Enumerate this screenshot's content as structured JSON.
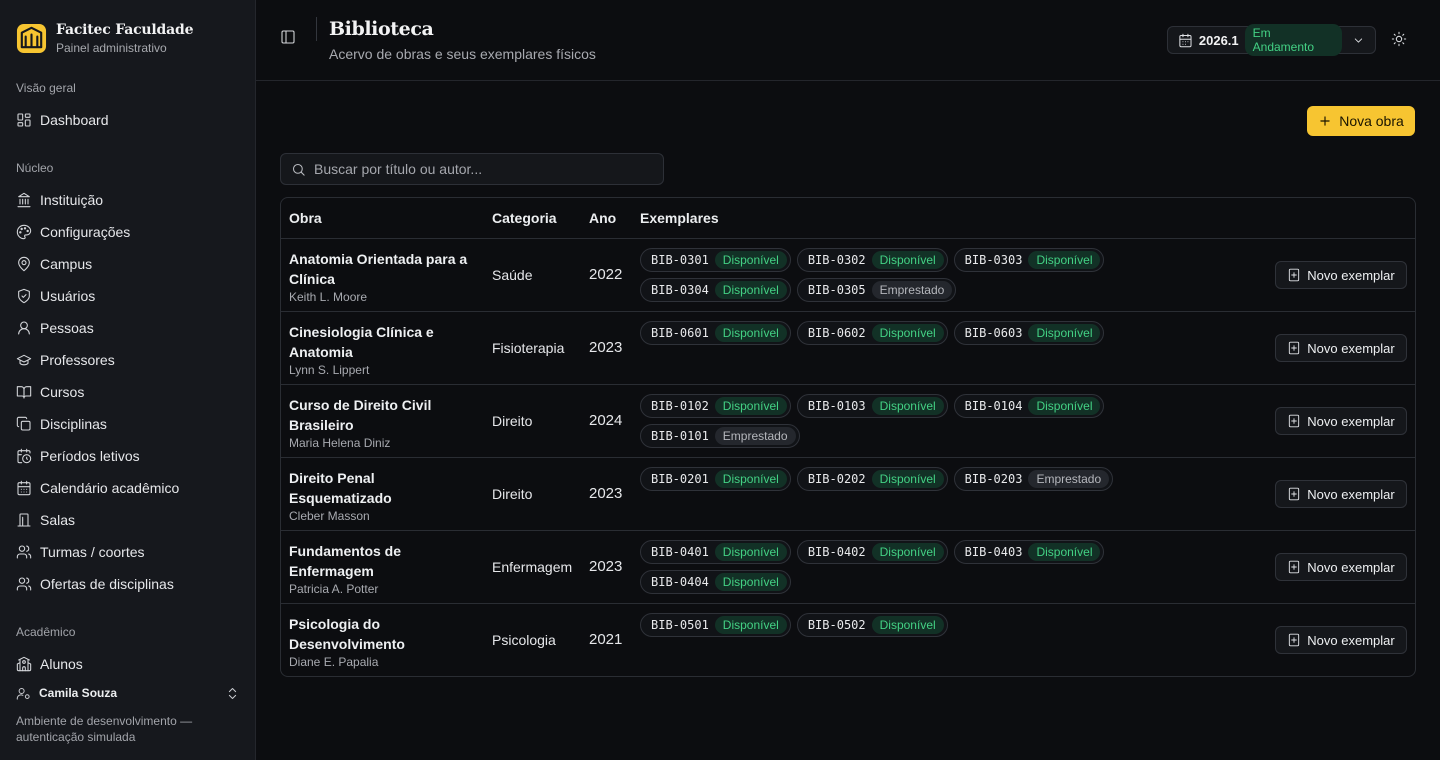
{
  "brand": {
    "name": "Facitec Faculdade",
    "subtitle": "Painel administrativo"
  },
  "sidebar": {
    "groups": [
      {
        "title": "Visão geral",
        "items": [
          {
            "label": "Dashboard",
            "icon": "dashboard-icon"
          }
        ]
      },
      {
        "title": "Núcleo",
        "items": [
          {
            "label": "Instituição",
            "icon": "landmark-icon"
          },
          {
            "label": "Configurações",
            "icon": "palette-icon"
          },
          {
            "label": "Campus",
            "icon": "map-pin-icon"
          },
          {
            "label": "Usuários",
            "icon": "shield-icon"
          },
          {
            "label": "Pessoas",
            "icon": "user-icon"
          },
          {
            "label": "Professores",
            "icon": "graduation-cap-icon"
          },
          {
            "label": "Cursos",
            "icon": "book-open-icon"
          },
          {
            "label": "Disciplinas",
            "icon": "copy-icon"
          },
          {
            "label": "Períodos letivos",
            "icon": "calendar-clock-icon"
          },
          {
            "label": "Calendário acadêmico",
            "icon": "calendar-days-icon"
          },
          {
            "label": "Salas",
            "icon": "door-icon"
          },
          {
            "label": "Turmas / coortes",
            "icon": "users-icon"
          },
          {
            "label": "Ofertas de disciplinas",
            "icon": "users-icon"
          }
        ]
      },
      {
        "title": "Acadêmico",
        "items": [
          {
            "label": "Alunos",
            "icon": "school-icon"
          }
        ]
      }
    ],
    "user": {
      "name": "Camila Souza"
    },
    "env_note": "Ambiente de desenvolvimento — autenticação simulada"
  },
  "header": {
    "title": "Biblioteca",
    "subtitle": "Acervo de obras e seus exemplares físicos",
    "period": {
      "label": "2026.1",
      "status": "Em Andamento"
    }
  },
  "actions": {
    "new_work": "Nova obra"
  },
  "search": {
    "placeholder": "Buscar por título ou autor..."
  },
  "table": {
    "columns": {
      "obra": "Obra",
      "categoria": "Categoria",
      "ano": "Ano",
      "exemplares": "Exemplares"
    },
    "add_copy_label": "Novo exemplar",
    "rows": [
      {
        "title": "Anatomia Orientada para a Clínica",
        "author": "Keith L. Moore",
        "category": "Saúde",
        "year": "2022",
        "copies": [
          {
            "code": "BIB-0301",
            "status": "Disponível"
          },
          {
            "code": "BIB-0302",
            "status": "Disponível"
          },
          {
            "code": "BIB-0303",
            "status": "Disponível"
          },
          {
            "code": "BIB-0304",
            "status": "Disponível"
          },
          {
            "code": "BIB-0305",
            "status": "Emprestado"
          }
        ]
      },
      {
        "title": "Cinesiologia Clínica e Anatomia",
        "author": "Lynn S. Lippert",
        "category": "Fisioterapia",
        "year": "2023",
        "copies": [
          {
            "code": "BIB-0601",
            "status": "Disponível"
          },
          {
            "code": "BIB-0602",
            "status": "Disponível"
          },
          {
            "code": "BIB-0603",
            "status": "Disponível"
          }
        ]
      },
      {
        "title": "Curso de Direito Civil Brasileiro",
        "author": "Maria Helena Diniz",
        "category": "Direito",
        "year": "2024",
        "copies": [
          {
            "code": "BIB-0102",
            "status": "Disponível"
          },
          {
            "code": "BIB-0103",
            "status": "Disponível"
          },
          {
            "code": "BIB-0104",
            "status": "Disponível"
          },
          {
            "code": "BIB-0101",
            "status": "Emprestado"
          }
        ]
      },
      {
        "title": "Direito Penal Esquematizado",
        "author": "Cleber Masson",
        "category": "Direito",
        "year": "2023",
        "copies": [
          {
            "code": "BIB-0201",
            "status": "Disponível"
          },
          {
            "code": "BIB-0202",
            "status": "Disponível"
          },
          {
            "code": "BIB-0203",
            "status": "Emprestado"
          }
        ]
      },
      {
        "title": "Fundamentos de Enfermagem",
        "author": "Patricia A. Potter",
        "category": "Enfermagem",
        "year": "2023",
        "copies": [
          {
            "code": "BIB-0401",
            "status": "Disponível"
          },
          {
            "code": "BIB-0402",
            "status": "Disponível"
          },
          {
            "code": "BIB-0403",
            "status": "Disponível"
          },
          {
            "code": "BIB-0404",
            "status": "Disponível"
          }
        ]
      },
      {
        "title": "Psicologia do Desenvolvimento",
        "author": "Diane E. Papalia",
        "category": "Psicologia",
        "year": "2021",
        "copies": [
          {
            "code": "BIB-0501",
            "status": "Disponível"
          },
          {
            "code": "BIB-0502",
            "status": "Disponível"
          }
        ]
      }
    ]
  }
}
